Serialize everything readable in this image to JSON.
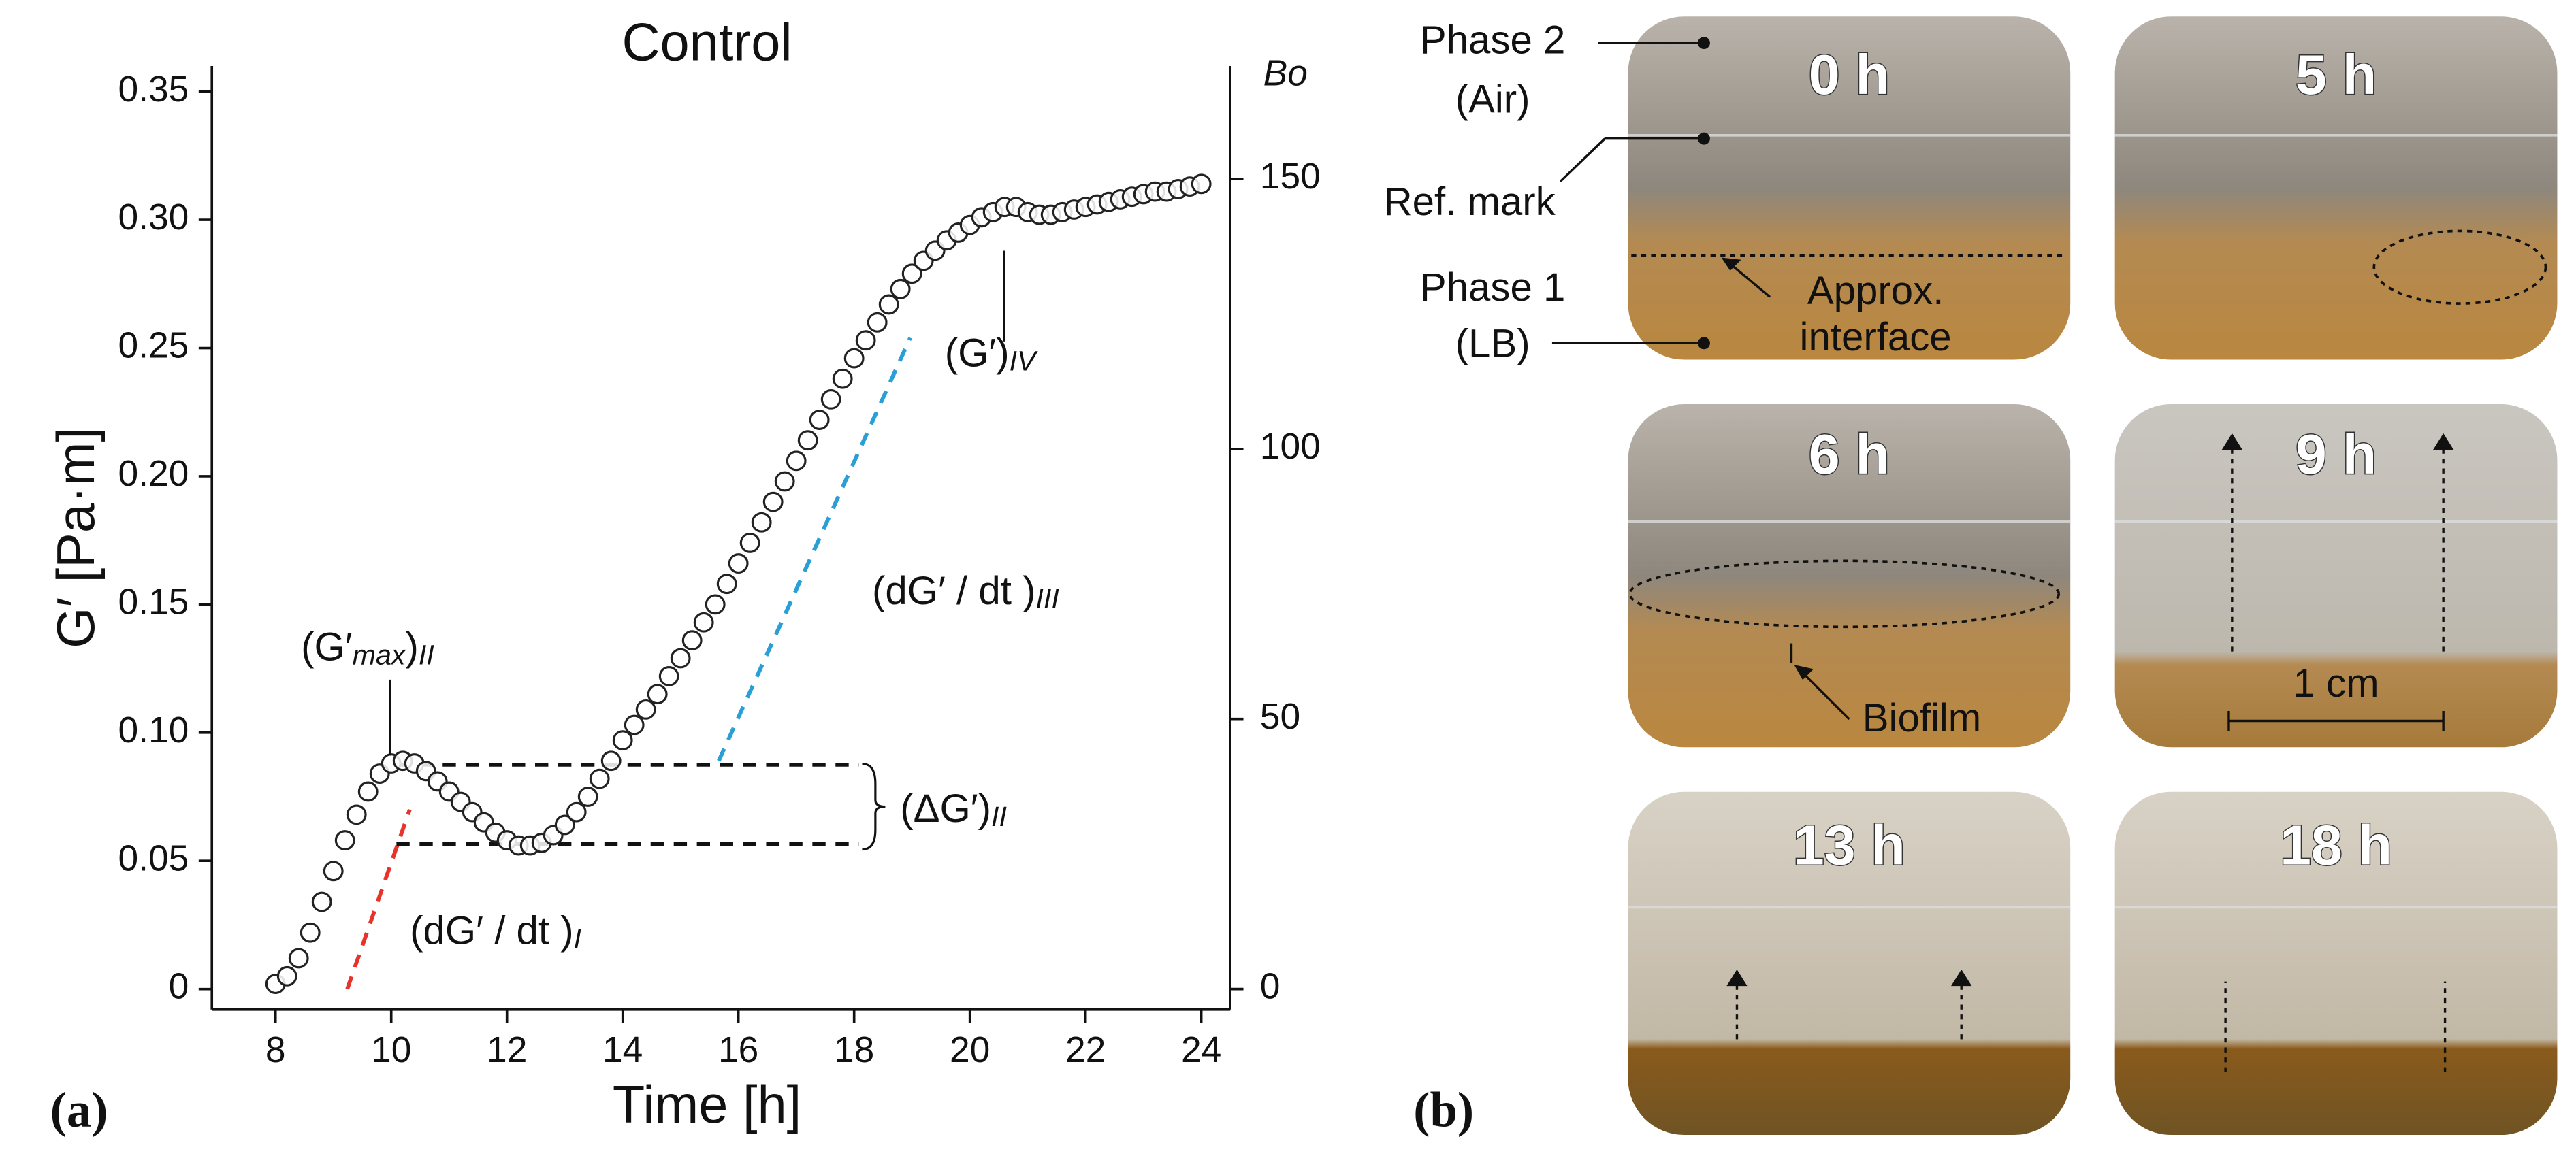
{
  "chart_data": {
    "type": "scatter",
    "title": "Control",
    "xlabel": "Time [h]",
    "ylabel": "G′ [Pa·m]",
    "y2label": "Bo",
    "xlim": [
      6.9,
      24.5
    ],
    "ylim": [
      -0.008,
      0.36
    ],
    "y2lim": [
      -3.8,
      170.9
    ],
    "xticks": [
      8,
      10,
      12,
      14,
      16,
      18,
      20,
      22,
      24
    ],
    "yticks": [
      0,
      0.05,
      {
        "value": 0.1,
        "label": "0.10"
      },
      0.15,
      {
        "value": 0.2,
        "label": "0.20"
      },
      0.25,
      {
        "value": 0.3,
        "label": "0.30"
      },
      0.35
    ],
    "y2ticks": [
      0,
      50,
      100,
      150
    ],
    "x": [
      8.0,
      8.2,
      8.4,
      8.6,
      8.8,
      9.0,
      9.2,
      9.4,
      9.6,
      9.8,
      10.0,
      10.2,
      10.4,
      10.6,
      10.8,
      11.0,
      11.2,
      11.4,
      11.6,
      11.8,
      12.0,
      12.2,
      12.4,
      12.6,
      12.8,
      13.0,
      13.2,
      13.4,
      13.6,
      13.8,
      14.0,
      14.2,
      14.4,
      14.6,
      14.8,
      15.0,
      15.2,
      15.4,
      15.6,
      15.8,
      16.0,
      16.2,
      16.4,
      16.6,
      16.8,
      17.0,
      17.2,
      17.4,
      17.6,
      17.8,
      18.0,
      18.2,
      18.4,
      18.6,
      18.8,
      19.0,
      19.2,
      19.4,
      19.6,
      19.8,
      20.0,
      20.2,
      20.4,
      20.6,
      20.8,
      21.0,
      21.2,
      21.4,
      21.6,
      21.8,
      22.0,
      22.2,
      22.4,
      22.6,
      22.8,
      23.0,
      23.2,
      23.4,
      23.6,
      23.8,
      24.0
    ],
    "series": [
      {
        "name": "G′",
        "color": "#222222",
        "values": [
          0.002,
          0.005,
          0.012,
          0.022,
          0.034,
          0.046,
          0.058,
          0.068,
          0.077,
          0.084,
          0.088,
          0.089,
          0.088,
          0.085,
          0.081,
          0.077,
          0.073,
          0.069,
          0.065,
          0.061,
          0.058,
          0.056,
          0.056,
          0.057,
          0.06,
          0.064,
          0.069,
          0.075,
          0.082,
          0.089,
          0.097,
          0.103,
          0.109,
          0.115,
          0.122,
          0.129,
          0.136,
          0.143,
          0.15,
          0.158,
          0.166,
          0.174,
          0.182,
          0.19,
          0.198,
          0.206,
          0.214,
          0.222,
          0.23,
          0.238,
          0.246,
          0.253,
          0.26,
          0.267,
          0.273,
          0.279,
          0.284,
          0.288,
          0.292,
          0.295,
          0.298,
          0.301,
          0.303,
          0.305,
          0.305,
          0.303,
          0.302,
          0.302,
          0.303,
          0.304,
          0.305,
          0.306,
          0.307,
          0.308,
          0.309,
          0.31,
          0.311,
          0.311,
          0.312,
          0.313,
          0.314
        ]
      }
    ],
    "guides": [
      {
        "x": [
          9.24,
          10.32
        ],
        "y": [
          0,
          0.07
        ],
        "color": "#e8332a"
      },
      {
        "x": [
          15.66,
          18.97
        ],
        "y": [
          0.089,
          0.254
        ],
        "color": "#2a9fd6"
      },
      {
        "x": [
          10.09,
          18.08
        ],
        "y": [
          0.0875,
          0.0875
        ],
        "color": "#111111"
      },
      {
        "x": [
          10.09,
          18.08
        ],
        "y": [
          0.0566,
          0.0566
        ],
        "color": "#111111"
      }
    ],
    "annotations": [
      {
        "parts": [
          "(G′",
          "max",
          ")",
          "II"
        ]
      },
      {
        "parts": [
          "(dG′ / dt )",
          "I"
        ]
      },
      {
        "parts": [
          "(dG′ / dt )",
          "III"
        ]
      },
      {
        "parts": [
          "(ΔG′)",
          "II"
        ]
      },
      {
        "parts": [
          "(G′)",
          "IV"
        ]
      }
    ]
  },
  "figure": {
    "panel_labels": [
      "(a)",
      "(b)"
    ],
    "photo_times": [
      "0 h",
      "5 h",
      "6 h",
      "9 h",
      "13 h",
      "18 h"
    ],
    "photo_labels": {
      "phase2": "Phase 2",
      "air": "(Air)",
      "ref": "Ref. mark",
      "phase1": "Phase 1",
      "lb": "(LB)",
      "approx": "Approx.",
      "interface": "interface",
      "biofilm": "Biofilm",
      "scale": "1 cm"
    }
  }
}
